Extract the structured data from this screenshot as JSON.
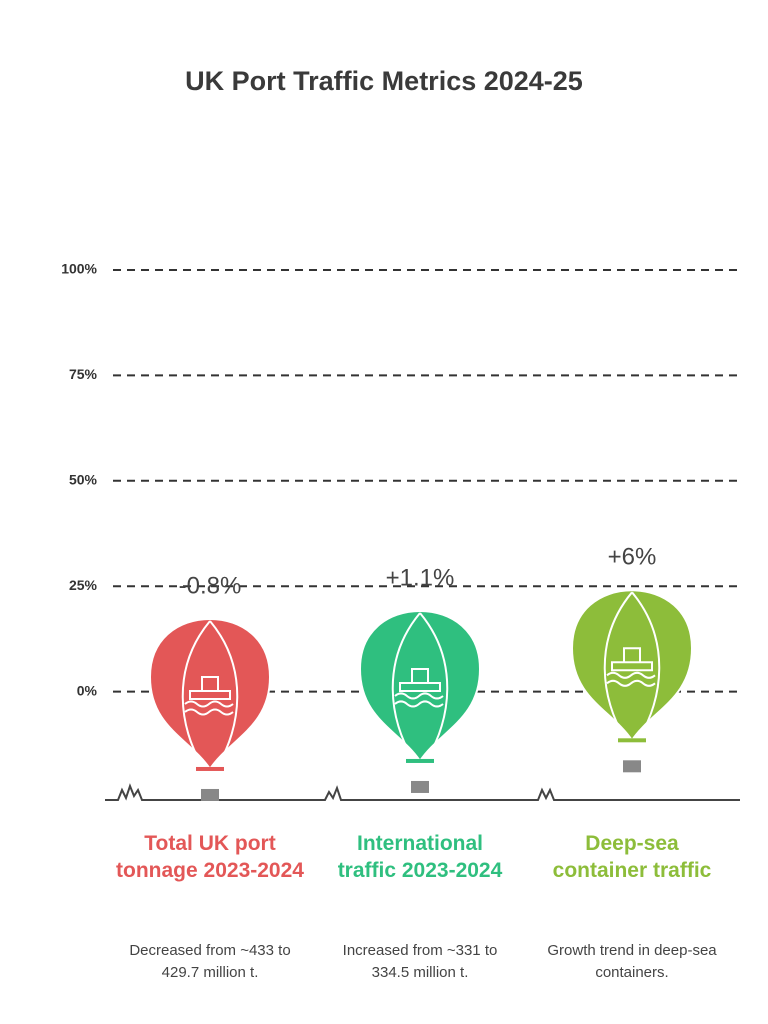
{
  "chart_data": {
    "type": "balloon",
    "title": "UK Port Traffic Metrics 2024-25",
    "categories": [
      "Total UK port tonnage 2023-2024",
      "International traffic 2023-2024",
      "Deep-sea container traffic"
    ],
    "descriptions": [
      "Decreased from ~433 to 429.7 million t.",
      "Increased from ~331 to 334.5 million t.",
      "Growth trend in deep-sea containers."
    ],
    "values": [
      -0.8,
      1.1,
      6
    ],
    "value_labels": [
      "-0.8%",
      "+1.1%",
      "+6%"
    ],
    "colors": [
      "#e35757",
      "#2fbf7f",
      "#8dbd3a"
    ],
    "ylim": [
      -25,
      100
    ],
    "yticks": [
      {
        "value": 0,
        "label": "0%"
      },
      {
        "value": 25,
        "label": "25%"
      },
      {
        "value": 50,
        "label": "50%"
      },
      {
        "value": 75,
        "label": "75%"
      },
      {
        "value": 100,
        "label": "100%"
      }
    ],
    "grid": true
  }
}
